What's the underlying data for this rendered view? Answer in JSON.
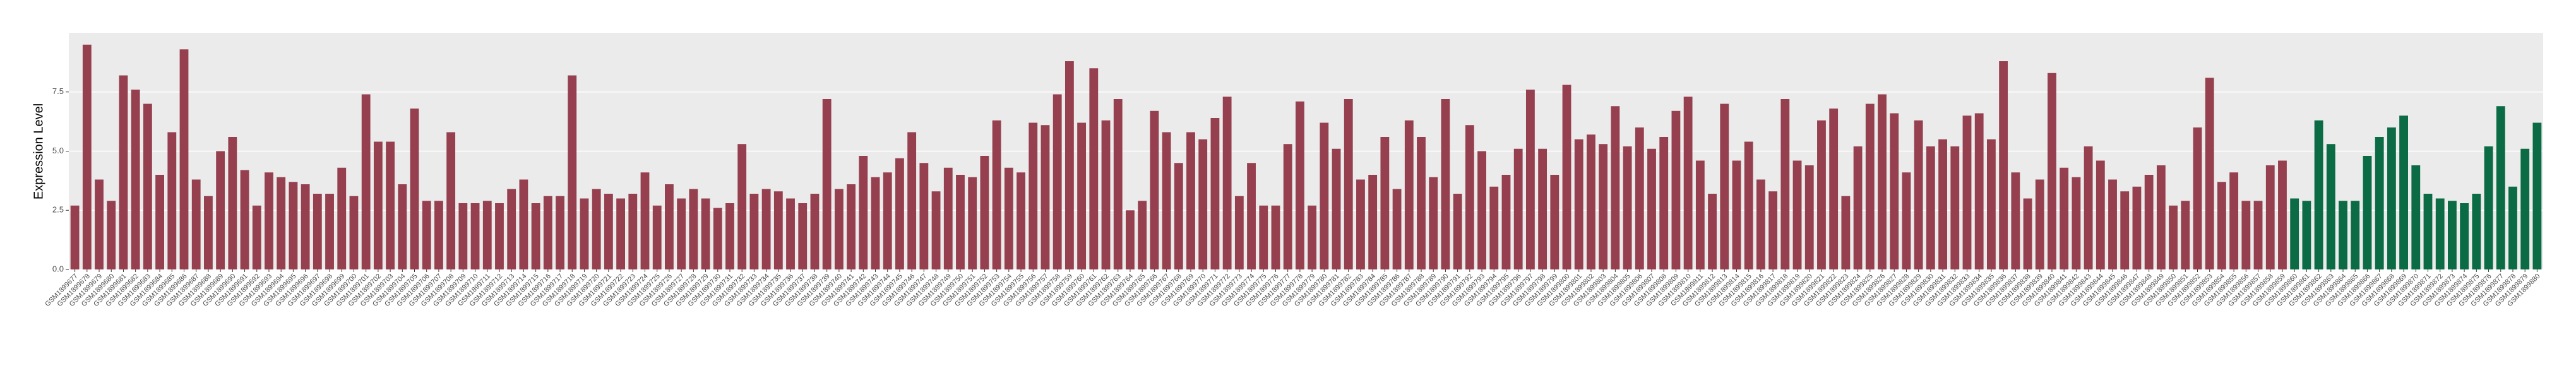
{
  "chart_data": {
    "type": "bar",
    "y_label": "Expression Level",
    "categories": [
      "GSM1899677",
      "GSM1899678",
      "GSM1899679",
      "GSM1899680",
      "GSM1899681",
      "GSM1899682",
      "GSM1899683",
      "GSM1899684",
      "GSM1899685",
      "GSM1899686",
      "GSM1899687",
      "GSM1899688",
      "GSM1899689",
      "GSM1899690",
      "GSM1899691",
      "GSM1899692",
      "GSM1899693",
      "GSM1899694",
      "GSM1899695",
      "GSM1899696",
      "GSM1899697",
      "GSM1899698",
      "GSM1899699",
      "GSM1899700",
      "GSM1899701",
      "GSM1899702",
      "GSM1899703",
      "GSM1899704",
      "GSM1899705",
      "GSM1899706",
      "GSM1899707",
      "GSM1899708",
      "GSM1899709",
      "GSM1899710",
      "GSM1899711",
      "GSM1899712",
      "GSM1899713",
      "GSM1899714",
      "GSM1899715",
      "GSM1899716",
      "GSM1899717",
      "GSM1899718",
      "GSM1899719",
      "GSM1899720",
      "GSM1899721",
      "GSM1899722",
      "GSM1899723",
      "GSM1899724",
      "GSM1899725",
      "GSM1899726",
      "GSM1899727",
      "GSM1899728",
      "GSM1899729",
      "GSM1899730",
      "GSM1899731",
      "GSM1899732",
      "GSM1899733",
      "GSM1899734",
      "GSM1899735",
      "GSM1899736",
      "GSM1899737",
      "GSM1899738",
      "GSM1899739",
      "GSM1899740",
      "GSM1899741",
      "GSM1899742",
      "GSM1899743",
      "GSM1899744",
      "GSM1899745",
      "GSM1899746",
      "GSM1899747",
      "GSM1899748",
      "GSM1899749",
      "GSM1899750",
      "GSM1899751",
      "GSM1899752",
      "GSM1899753",
      "GSM1899754",
      "GSM1899755",
      "GSM1899756",
      "GSM1899757",
      "GSM1899758",
      "GSM1899759",
      "GSM1899760",
      "GSM1899761",
      "GSM1899762",
      "GSM1899763",
      "GSM1899764",
      "GSM1899765",
      "GSM1899766",
      "GSM1899767",
      "GSM1899768",
      "GSM1899769",
      "GSM1899770",
      "GSM1899771",
      "GSM1899772",
      "GSM1899773",
      "GSM1899774",
      "GSM1899775",
      "GSM1899776",
      "GSM1899777",
      "GSM1899778",
      "GSM1899779",
      "GSM1899780",
      "GSM1899781",
      "GSM1899782",
      "GSM1899783",
      "GSM1899784",
      "GSM1899785",
      "GSM1899786",
      "GSM1899787",
      "GSM1899788",
      "GSM1899789",
      "GSM1899790",
      "GSM1899791",
      "GSM1899792",
      "GSM1899793",
      "GSM1899794",
      "GSM1899795",
      "GSM1899796",
      "GSM1899797",
      "GSM1899798",
      "GSM1899799",
      "GSM1899800",
      "GSM1899801",
      "GSM1899802",
      "GSM1899803",
      "GSM1899804",
      "GSM1899805",
      "GSM1899806",
      "GSM1899807",
      "GSM1899808",
      "GSM1899809",
      "GSM1899810",
      "GSM1899811",
      "GSM1899812",
      "GSM1899813",
      "GSM1899814",
      "GSM1899815",
      "GSM1899816",
      "GSM1899817",
      "GSM1899818",
      "GSM1899819",
      "GSM1899820",
      "GSM1899821",
      "GSM1899822",
      "GSM1899823",
      "GSM1899824",
      "GSM1899825",
      "GSM1899826",
      "GSM1899827",
      "GSM1899828",
      "GSM1899829",
      "GSM1899830",
      "GSM1899831",
      "GSM1899832",
      "GSM1899833",
      "GSM1899834",
      "GSM1899835",
      "GSM1899836",
      "GSM1899837",
      "GSM1899838",
      "GSM1899839",
      "GSM1899840",
      "GSM1899841",
      "GSM1899842",
      "GSM1899843",
      "GSM1899844",
      "GSM1899845",
      "GSM1899846",
      "GSM1899847",
      "GSM1899848",
      "GSM1899849",
      "GSM1899850",
      "GSM1899851",
      "GSM1899852",
      "GSM1899853",
      "GSM1899854",
      "GSM1899855",
      "GSM1899856",
      "GSM1899857",
      "GSM1899858",
      "GSM1899859",
      "GSM1899860",
      "GSM1899861",
      "GSM1899862",
      "GSM1899863",
      "GSM1899864",
      "GSM1899865",
      "GSM1899866",
      "GSM1899867",
      "GSM1899868",
      "GSM1899869",
      "GSM1899870",
      "GSM1899871",
      "GSM1899872",
      "GSM1899873",
      "GSM1899874",
      "GSM1899875",
      "GSM1899876",
      "GSM1899877",
      "GSM1899878",
      "GSM1899879",
      "GSM1899880"
    ],
    "series": [
      {
        "color": "#96404f",
        "values": [
          2.7,
          9.5,
          3.8,
          2.9,
          8.2,
          7.6,
          7.0,
          4.0,
          5.8,
          9.3,
          3.8,
          3.1,
          5.0,
          5.6,
          4.2,
          2.7,
          4.1,
          3.9,
          3.7,
          3.6,
          3.2,
          3.2,
          4.3,
          3.1,
          7.4,
          5.4,
          5.4,
          3.6,
          6.8,
          2.9,
          2.9,
          5.8,
          2.8,
          2.8,
          2.9,
          2.8,
          3.4,
          3.8,
          2.8,
          3.1,
          3.1,
          8.2,
          3.0,
          3.4,
          3.2,
          3.0,
          3.2,
          4.1,
          2.7,
          3.6,
          3.0,
          3.4,
          3.0,
          2.6,
          2.8,
          5.3,
          3.2,
          3.4,
          3.3,
          3.0,
          2.8,
          3.2,
          7.2,
          3.4,
          3.6,
          4.8,
          3.9,
          4.1,
          4.7,
          5.8,
          4.5,
          3.3,
          4.3,
          4.0,
          3.9,
          4.8,
          6.3,
          4.3,
          4.1,
          6.2,
          6.1,
          7.4,
          8.8,
          6.2,
          8.5,
          6.3,
          7.2,
          2.5,
          2.9,
          6.7,
          5.8,
          4.5,
          5.8,
          5.5,
          6.4,
          7.3,
          3.1,
          4.5,
          2.7,
          2.7,
          5.3,
          7.1,
          2.7,
          6.2,
          5.1,
          7.2,
          3.8,
          4.0,
          5.6,
          3.4,
          6.3,
          5.6,
          3.9,
          7.2,
          3.2,
          6.1,
          5.0,
          3.5,
          4.0,
          5.1,
          7.6,
          5.1,
          4.0,
          7.8,
          5.5,
          5.7,
          5.3,
          6.9,
          5.2,
          6.0,
          5.1,
          5.6,
          6.7,
          7.3,
          4.6,
          3.2,
          7.0,
          4.6,
          5.4,
          3.8,
          3.3,
          7.2,
          4.6,
          4.4,
          6.3,
          6.8,
          3.1,
          5.2,
          7.0,
          7.4,
          6.6,
          4.1,
          6.3,
          5.2,
          5.5,
          5.2,
          6.5,
          6.6,
          5.5,
          8.8,
          4.1,
          3.0,
          3.8,
          8.3,
          4.3,
          3.9,
          5.2,
          4.6,
          3.8,
          3.3,
          3.5,
          4.0,
          4.4,
          2.7,
          2.9,
          6.0,
          8.1,
          3.7,
          4.1,
          2.9,
          2.9,
          4.4,
          4.6,
          null,
          null,
          null,
          null,
          null,
          null,
          null,
          null,
          null,
          null,
          null,
          null,
          null,
          null,
          null,
          null,
          null,
          null,
          null,
          null,
          null
        ]
      },
      {
        "color": "#0b6b44",
        "values": [
          null,
          null,
          null,
          null,
          null,
          null,
          null,
          null,
          null,
          null,
          null,
          null,
          null,
          null,
          null,
          null,
          null,
          null,
          null,
          null,
          null,
          null,
          null,
          null,
          null,
          null,
          null,
          null,
          null,
          null,
          null,
          null,
          null,
          null,
          null,
          null,
          null,
          null,
          null,
          null,
          null,
          null,
          null,
          null,
          null,
          null,
          null,
          null,
          null,
          null,
          null,
          null,
          null,
          null,
          null,
          null,
          null,
          null,
          null,
          null,
          null,
          null,
          null,
          null,
          null,
          null,
          null,
          null,
          null,
          null,
          null,
          null,
          null,
          null,
          null,
          null,
          null,
          null,
          null,
          null,
          null,
          null,
          null,
          null,
          null,
          null,
          null,
          null,
          null,
          null,
          null,
          null,
          null,
          null,
          null,
          null,
          null,
          null,
          null,
          null,
          null,
          null,
          null,
          null,
          null,
          null,
          null,
          null,
          null,
          null,
          null,
          null,
          null,
          null,
          null,
          null,
          null,
          null,
          null,
          null,
          null,
          null,
          null,
          null,
          null,
          null,
          null,
          null,
          null,
          null,
          null,
          null,
          null,
          null,
          null,
          null,
          null,
          null,
          null,
          null,
          null,
          null,
          null,
          null,
          null,
          null,
          null,
          null,
          null,
          null,
          null,
          null,
          null,
          null,
          null,
          null,
          null,
          null,
          null,
          null,
          null,
          null,
          null,
          null,
          null,
          null,
          null,
          null,
          null,
          null,
          null,
          null,
          null,
          null,
          null,
          null,
          null,
          null,
          null,
          null,
          null,
          null,
          null,
          3.0,
          2.9,
          6.3,
          5.3,
          2.9,
          2.9,
          4.8,
          5.6,
          6.0,
          6.5,
          4.4,
          3.2,
          3.0,
          2.9,
          2.8,
          3.2,
          5.2,
          6.9,
          3.5,
          5.1,
          6.2
        ]
      }
    ],
    "ylim": [
      0,
      10
    ],
    "yticks": [
      {
        "value": 0,
        "label": "0.0"
      },
      2.5,
      {
        "value": 5,
        "label": "5.0"
      },
      7.5
    ],
    "grid": true
  }
}
